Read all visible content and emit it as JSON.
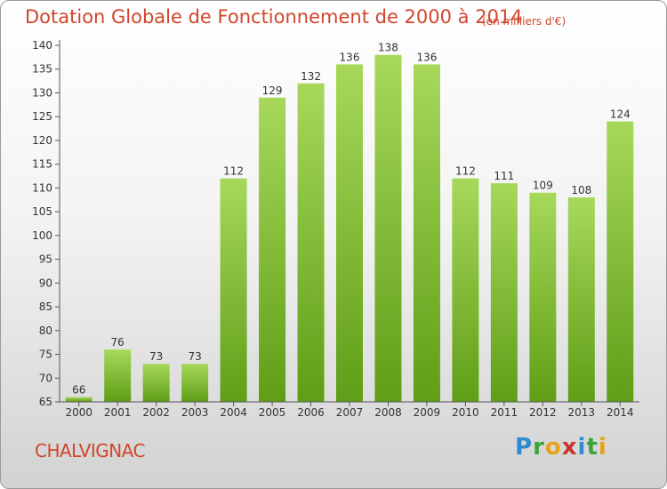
{
  "title": "Dotation Globale de Fonctionnement de 2000 à 2014",
  "subtitle": "(en milliers d'€)",
  "commune": "CHALVIGNAC",
  "logo": {
    "p": "P",
    "r": "r",
    "o": "o",
    "x": "x",
    "i": "i",
    "t": "t",
    "i2": "i"
  },
  "colors": {
    "bar_top": "#a7d85a",
    "bar_bottom": "#5f9e17",
    "title": "#d2452c"
  },
  "chart_data": {
    "type": "bar",
    "categories": [
      "2000",
      "2001",
      "2002",
      "2003",
      "2004",
      "2005",
      "2006",
      "2007",
      "2008",
      "2009",
      "2010",
      "2011",
      "2012",
      "2013",
      "2014"
    ],
    "values": [
      66,
      76,
      73,
      73,
      112,
      129,
      132,
      136,
      138,
      136,
      112,
      111,
      109,
      108,
      124
    ],
    "ylim": [
      65,
      140
    ],
    "yticks": [
      65,
      70,
      75,
      80,
      85,
      90,
      95,
      100,
      105,
      110,
      115,
      120,
      125,
      130,
      135,
      140
    ],
    "grid": false,
    "xlabel": "",
    "ylabel": ""
  }
}
